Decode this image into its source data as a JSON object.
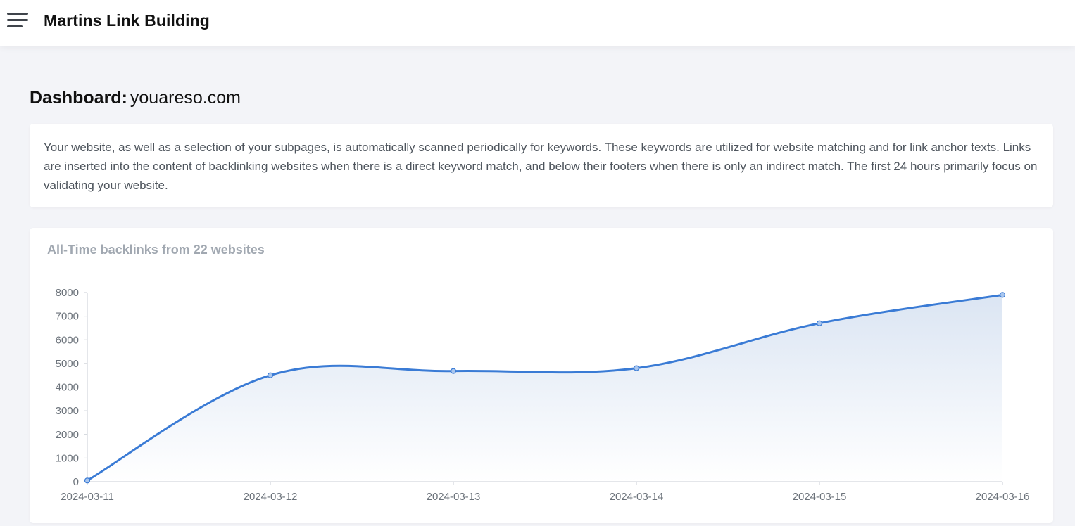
{
  "header": {
    "menu_icon": "hamburger-menu-icon",
    "app_title": "Martins Link Building"
  },
  "page": {
    "heading_label": "Dashboard:",
    "heading_domain": "youareso.com"
  },
  "info": {
    "text": "Your website, as well as a selection of your subpages, is automatically scanned periodically for keywords. These keywords are utilized for website matching and for link anchor texts. Links are inserted into the content of backlinking websites when there is a direct keyword match, and below their footers when there is only an indirect match. The first 24 hours primarily focus on validating your website."
  },
  "chart_data": {
    "type": "area",
    "title": "All-Time backlinks from 22 websites",
    "x": [
      "2024-03-11",
      "2024-03-12",
      "2024-03-13",
      "2024-03-14",
      "2024-03-15",
      "2024-03-16"
    ],
    "values": [
      50,
      4500,
      4680,
      4800,
      6700,
      7900
    ],
    "ylim": [
      0,
      8000
    ],
    "yticks": [
      "0",
      "1000",
      "2000",
      "3000",
      "4000",
      "5000",
      "6000",
      "7000",
      "8000"
    ],
    "line_color": "#3a7bd5",
    "fill_color": "#dbe5f3",
    "legend": "none",
    "grid": false
  }
}
